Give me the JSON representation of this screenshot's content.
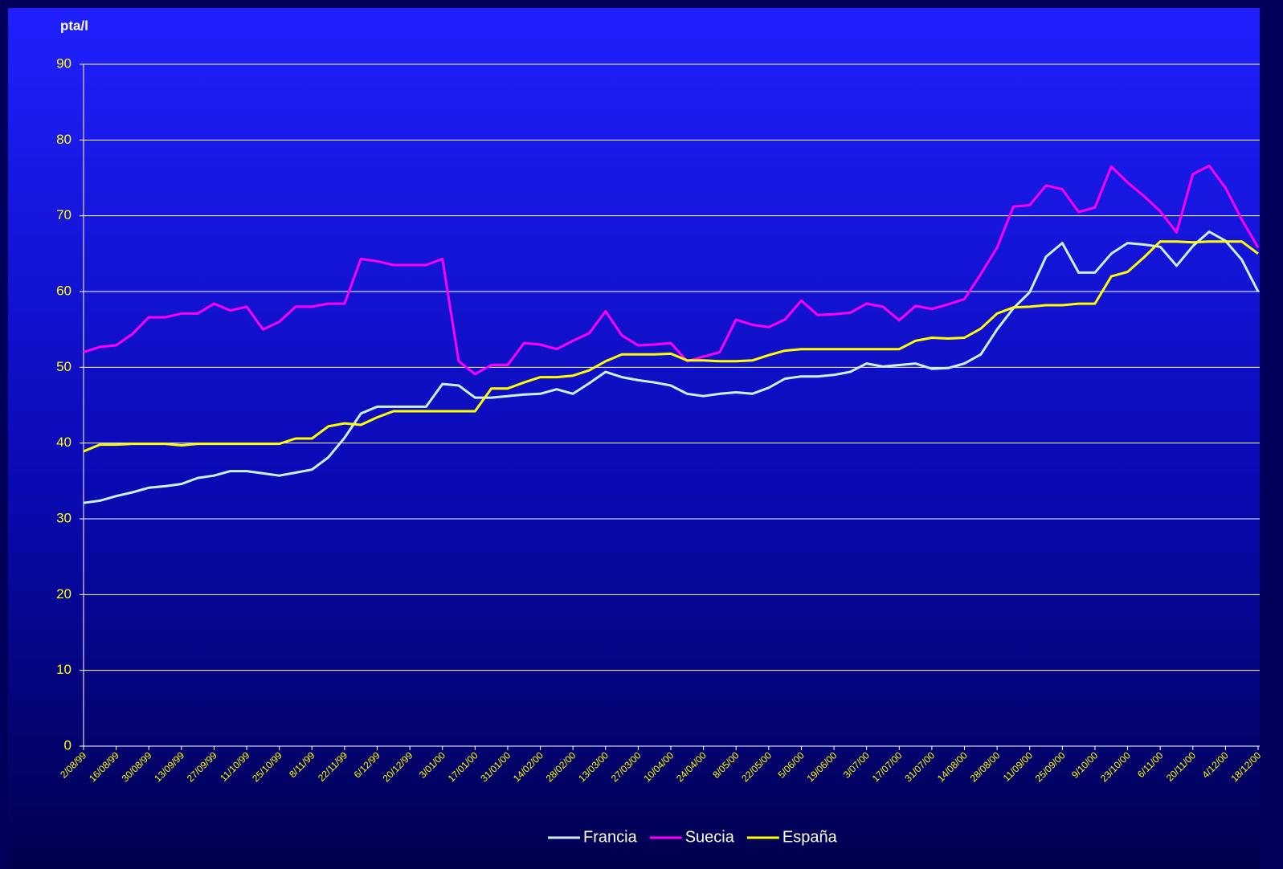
{
  "chart_data": {
    "type": "line",
    "y_axis_label": "pta/l",
    "categories": [
      "2/08/99",
      null,
      "16/08/99",
      null,
      "30/08/99",
      null,
      "13/09/99",
      null,
      "27/09/99",
      null,
      "11/10/99",
      null,
      "25/10/99",
      null,
      "8/11/99",
      null,
      "22/11/99",
      null,
      "6/12/99",
      null,
      "20/12/99",
      null,
      "3/01/00",
      null,
      "17/01/00",
      null,
      "31/01/00",
      null,
      "14/02/00",
      null,
      "28/02/00",
      null,
      "13/03/00",
      null,
      "27/03/00",
      null,
      "10/04/00",
      null,
      "24/04/00",
      null,
      "8/05/00",
      null,
      "22/05/00",
      null,
      "5/06/00",
      null,
      "19/06/00",
      null,
      "3/07/00",
      null,
      "17/07/00",
      null,
      "31/07/00",
      null,
      "14/08/00",
      null,
      "28/08/00",
      null,
      "11/09/00",
      null,
      "25/09/00",
      null,
      "9/10/00",
      null,
      "23/10/00",
      null,
      "6/11/00",
      null,
      "20/11/00",
      null,
      "4/12/00",
      null,
      "18/12/00"
    ],
    "series": [
      {
        "name": "Francia",
        "color": "#ccf0ff",
        "values": [
          32.1,
          32.4,
          33,
          33.5,
          34.1,
          34.3,
          34.6,
          35.4,
          35.7,
          36.3,
          36.3,
          36,
          35.7,
          36.1,
          36.5,
          38.1,
          40.7,
          43.9,
          44.8,
          44.8,
          44.8,
          44.8,
          47.8,
          47.6,
          46,
          46,
          46.2,
          46.4,
          46.5,
          47.1,
          46.5,
          47.9,
          49.4,
          48.7,
          48.3,
          48,
          47.6,
          46.5,
          46.2,
          46.5,
          46.7,
          46.5,
          47.3,
          48.5,
          48.8,
          48.8,
          49,
          49.4,
          50.5,
          50.1,
          50.3,
          50.5,
          49.8,
          49.9,
          50.5,
          51.7,
          55,
          57.8,
          59.9,
          64.6,
          66.4,
          62.5,
          62.5,
          65,
          66.4,
          66.2,
          65.9,
          63.4,
          66,
          67.9,
          66.7,
          64.2,
          60
        ]
      },
      {
        "name": "Suecia",
        "color": "#ff00ff",
        "values": [
          52,
          52.7,
          52.9,
          54.4,
          56.6,
          56.6,
          57.1,
          57.1,
          58.4,
          57.5,
          58,
          55,
          56,
          58,
          58,
          58.4,
          58.4,
          64.3,
          64,
          63.5,
          63.5,
          63.5,
          64.3,
          50.8,
          49.1,
          50.3,
          50.3,
          53.2,
          53,
          52.4,
          53.5,
          54.5,
          57.4,
          54.2,
          52.9,
          53,
          53.2,
          50.8,
          51.4,
          52,
          56.3,
          55.6,
          55.3,
          56.3,
          58.8,
          56.9,
          57,
          57.2,
          58.4,
          58,
          56.2,
          58.1,
          57.7,
          58.3,
          59,
          62.3,
          65.8,
          71.2,
          71.4,
          74,
          73.5,
          70.5,
          71.1,
          76.5,
          74.4,
          72.6,
          70.6,
          67.8,
          75.5,
          76.6,
          73.7,
          69.5,
          65.8
        ]
      },
      {
        "name": "España",
        "color": "#ffff00",
        "values": [
          38.9,
          39.8,
          39.8,
          39.9,
          39.9,
          39.9,
          39.7,
          39.9,
          39.9,
          39.9,
          39.9,
          39.9,
          39.9,
          40.6,
          40.6,
          42.2,
          42.6,
          42.4,
          43.4,
          44.2,
          44.2,
          44.2,
          44.2,
          44.2,
          44.2,
          47.2,
          47.2,
          48,
          48.7,
          48.7,
          48.9,
          49.6,
          50.8,
          51.7,
          51.7,
          51.7,
          51.8,
          50.9,
          50.9,
          50.8,
          50.8,
          50.9,
          51.6,
          52.2,
          52.4,
          52.4,
          52.4,
          52.4,
          52.4,
          52.4,
          52.4,
          53.5,
          53.9,
          53.8,
          53.9,
          55.1,
          57.1,
          57.9,
          58,
          58.2,
          58.2,
          58.4,
          58.4,
          62,
          62.6,
          64.5,
          66.6,
          66.6,
          66.5,
          66.6,
          66.6,
          66.6,
          65
        ]
      }
    ],
    "ylim": [
      0,
      90
    ],
    "yticks": [
      0,
      10,
      20,
      30,
      40,
      50,
      60,
      70,
      80,
      90
    ],
    "grid": true,
    "legend": "bottom"
  }
}
